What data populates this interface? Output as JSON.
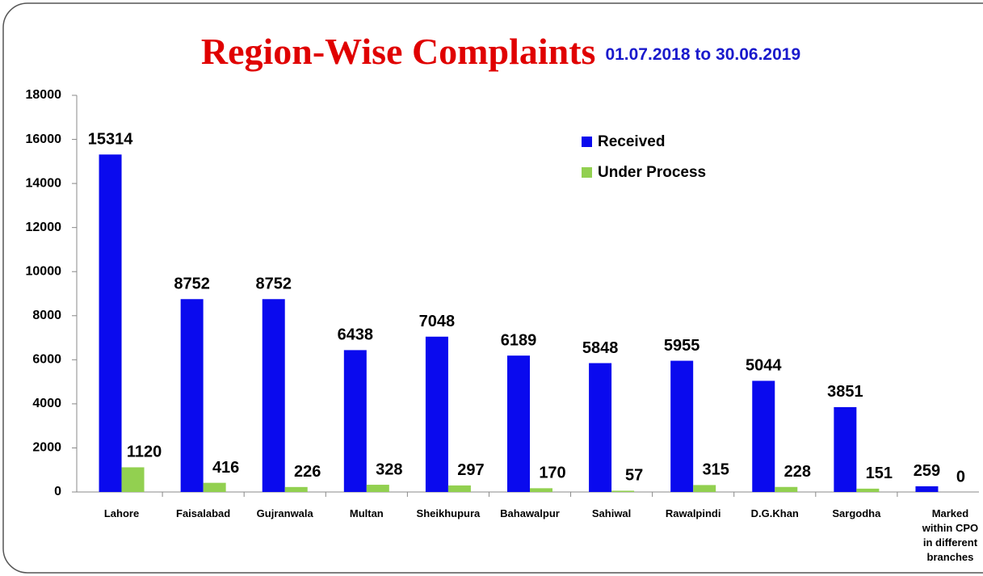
{
  "chart_data": {
    "type": "bar",
    "title": "Region-Wise Complaints",
    "subtitle": "01.07.2018 to 30.06.2019",
    "categories": [
      "Lahore",
      "Faisalabad",
      "Gujranwala",
      "Multan",
      "Sheikhupura",
      "Bahawalpur",
      "Sahiwal",
      "Rawalpindi",
      "D.G.Khan",
      "Sargodha",
      "Marked within CPO in different branches"
    ],
    "series": [
      {
        "name": "Received",
        "color": "#0a0aee",
        "values": [
          15314,
          8752,
          8752,
          6438,
          7048,
          6189,
          5848,
          5955,
          5044,
          3851,
          259
        ]
      },
      {
        "name": "Under Process",
        "color": "#92d050",
        "values": [
          1120,
          416,
          226,
          328,
          297,
          170,
          57,
          315,
          228,
          151,
          0
        ]
      }
    ],
    "ylim": [
      0,
      18000
    ],
    "yticks": [
      0,
      2000,
      4000,
      6000,
      8000,
      10000,
      12000,
      14000,
      16000,
      18000
    ],
    "grid": false,
    "legend": "top-right"
  }
}
